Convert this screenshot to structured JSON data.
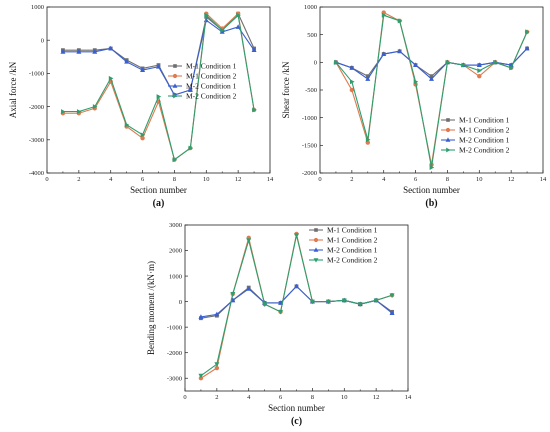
{
  "chart_data": [
    {
      "type": "line",
      "panel_label": "(a)",
      "xlabel": "Section number",
      "ylabel": "Axial force /kN",
      "xlim": [
        0,
        14
      ],
      "ylim": [
        -4000,
        1000
      ],
      "xticks": [
        0,
        2,
        4,
        6,
        8,
        10,
        12,
        14
      ],
      "yticks": [
        -4000,
        -3000,
        -2000,
        -1000,
        0,
        1000
      ],
      "legend_position": "center-right",
      "series": [
        {
          "name": "M-1 Condition 1",
          "color": "#6f6f6f",
          "marker": "square",
          "x": [
            1,
            2,
            3,
            4,
            5,
            6,
            7,
            8,
            9,
            10,
            11,
            12,
            13
          ],
          "y": [
            -300,
            -300,
            -300,
            -250,
            -600,
            -850,
            -750,
            -1650,
            -1500,
            700,
            300,
            800,
            -250
          ]
        },
        {
          "name": "M-1 Condition 2",
          "color": "#e07a4f",
          "marker": "circle",
          "x": [
            1,
            2,
            3,
            4,
            5,
            6,
            7,
            8,
            9,
            10,
            11,
            12,
            13
          ],
          "y": [
            -2200,
            -2200,
            -2050,
            -1250,
            -2600,
            -2950,
            -1850,
            -3600,
            -3250,
            800,
            350,
            800,
            -2100
          ]
        },
        {
          "name": "M-2 Condition 1",
          "color": "#3a5fd0",
          "marker": "triangle-up",
          "x": [
            1,
            2,
            3,
            4,
            5,
            6,
            7,
            8,
            9,
            10,
            11,
            12,
            13
          ],
          "y": [
            -350,
            -350,
            -350,
            -250,
            -650,
            -900,
            -800,
            -1650,
            -1500,
            600,
            250,
            400,
            -300
          ]
        },
        {
          "name": "M-2 Condition 2",
          "color": "#2e9e6e",
          "marker": "triangle-right",
          "x": [
            1,
            2,
            3,
            4,
            5,
            6,
            7,
            8,
            9,
            10,
            11,
            12,
            13
          ],
          "y": [
            -2150,
            -2150,
            -2000,
            -1150,
            -2550,
            -2850,
            -1700,
            -3600,
            -3250,
            750,
            300,
            750,
            -2100
          ]
        }
      ]
    },
    {
      "type": "line",
      "panel_label": "(b)",
      "xlabel": "Section number",
      "ylabel": "Shear force /kN",
      "xlim": [
        0,
        14
      ],
      "ylim": [
        -2000,
        1000
      ],
      "xticks": [
        0,
        2,
        4,
        6,
        8,
        10,
        12,
        14
      ],
      "yticks": [
        -2000,
        -1500,
        -1000,
        -500,
        0,
        500,
        1000
      ],
      "legend_position": "lower-right",
      "series": [
        {
          "name": "M-1 Condition 1",
          "color": "#6f6f6f",
          "marker": "square",
          "x": [
            1,
            2,
            3,
            4,
            5,
            6,
            7,
            8,
            9,
            10,
            11,
            12,
            13
          ],
          "y": [
            0,
            -100,
            -250,
            150,
            200,
            -50,
            -250,
            0,
            -50,
            -50,
            0,
            -50,
            250
          ]
        },
        {
          "name": "M-1 Condition 2",
          "color": "#e07a4f",
          "marker": "circle",
          "x": [
            1,
            2,
            3,
            4,
            5,
            6,
            7,
            8,
            9,
            10,
            11,
            12,
            13
          ],
          "y": [
            0,
            -500,
            -1450,
            900,
            750,
            -400,
            -1850,
            0,
            -50,
            -250,
            0,
            -100,
            550
          ]
        },
        {
          "name": "M-2 Condition 1",
          "color": "#3a5fd0",
          "marker": "triangle-up",
          "x": [
            1,
            2,
            3,
            4,
            5,
            6,
            7,
            8,
            9,
            10,
            11,
            12,
            13
          ],
          "y": [
            0,
            -100,
            -300,
            150,
            200,
            -50,
            -300,
            0,
            -50,
            -50,
            0,
            -50,
            250
          ]
        },
        {
          "name": "M-2 Condition 2",
          "color": "#2e9e6e",
          "marker": "triangle-right",
          "x": [
            1,
            2,
            3,
            4,
            5,
            6,
            7,
            8,
            9,
            10,
            11,
            12,
            13
          ],
          "y": [
            0,
            -350,
            -1400,
            850,
            750,
            -350,
            -1900,
            0,
            -50,
            -150,
            0,
            -100,
            550
          ]
        }
      ]
    },
    {
      "type": "line",
      "panel_label": "(c)",
      "xlabel": "Section number",
      "ylabel": "Bending moment /(kN·m)",
      "xlim": [
        0,
        14
      ],
      "ylim": [
        -3500,
        3000
      ],
      "xticks": [
        0,
        2,
        4,
        6,
        8,
        10,
        12,
        14
      ],
      "yticks": [
        -3000,
        -2000,
        -1000,
        0,
        1000,
        2000,
        3000
      ],
      "legend_position": "top-right",
      "series": [
        {
          "name": "M-1 Condition 1",
          "color": "#6f6f6f",
          "marker": "square",
          "x": [
            1,
            2,
            3,
            4,
            5,
            6,
            7,
            8,
            9,
            10,
            11,
            12,
            13
          ],
          "y": [
            -650,
            -550,
            50,
            550,
            -50,
            -50,
            600,
            0,
            0,
            50,
            -100,
            50,
            -400
          ]
        },
        {
          "name": "M-1 Condition 2",
          "color": "#e07a4f",
          "marker": "circle",
          "x": [
            1,
            2,
            3,
            4,
            5,
            6,
            7,
            8,
            9,
            10,
            11,
            12,
            13
          ],
          "y": [
            -3000,
            -2600,
            300,
            2500,
            -100,
            -400,
            2650,
            0,
            0,
            50,
            -100,
            50,
            250
          ]
        },
        {
          "name": "M-2 Condition 1",
          "color": "#3a5fd0",
          "marker": "triangle-up",
          "x": [
            1,
            2,
            3,
            4,
            5,
            6,
            7,
            8,
            9,
            10,
            11,
            12,
            13
          ],
          "y": [
            -600,
            -500,
            50,
            500,
            -50,
            -50,
            600,
            0,
            0,
            50,
            -100,
            50,
            -450
          ]
        },
        {
          "name": "M-2 Condition 2",
          "color": "#2e9e6e",
          "marker": "triangle-down",
          "x": [
            1,
            2,
            3,
            4,
            5,
            6,
            7,
            8,
            9,
            10,
            11,
            12,
            13
          ],
          "y": [
            -2900,
            -2450,
            300,
            2400,
            -100,
            -400,
            2600,
            0,
            0,
            50,
            -100,
            50,
            250
          ]
        }
      ]
    }
  ]
}
